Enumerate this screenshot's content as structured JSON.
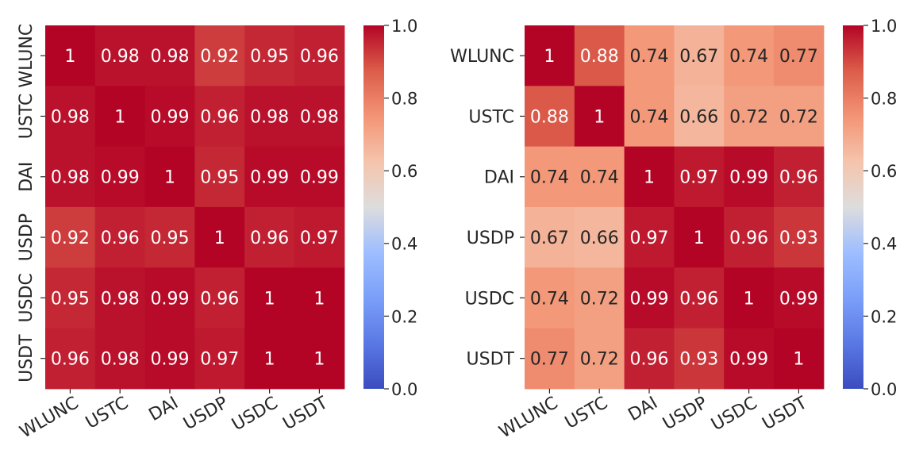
{
  "chart_data": [
    {
      "type": "heatmap",
      "title": "",
      "xlabel": "",
      "ylabel": "",
      "categories": [
        "WLUNC",
        "USTC",
        "DAI",
        "USDP",
        "USDC",
        "USDT"
      ],
      "y_labels_rotated": true,
      "values": [
        [
          1,
          0.98,
          0.98,
          0.92,
          0.95,
          0.96
        ],
        [
          0.98,
          1,
          0.99,
          0.96,
          0.98,
          0.98
        ],
        [
          0.98,
          0.99,
          1,
          0.95,
          0.99,
          0.99
        ],
        [
          0.92,
          0.96,
          0.95,
          1,
          0.96,
          0.97
        ],
        [
          0.95,
          0.98,
          0.99,
          0.96,
          1,
          1
        ],
        [
          0.96,
          0.98,
          0.99,
          0.97,
          1,
          1
        ]
      ],
      "cell_labels": [
        [
          "1",
          "0.98",
          "0.98",
          "0.92",
          "0.95",
          "0.96"
        ],
        [
          "0.98",
          "1",
          "0.99",
          "0.96",
          "0.98",
          "0.98"
        ],
        [
          "0.98",
          "0.99",
          "1",
          "0.95",
          "0.99",
          "0.99"
        ],
        [
          "0.92",
          "0.96",
          "0.95",
          "1",
          "0.96",
          "0.97"
        ],
        [
          "0.95",
          "0.98",
          "0.99",
          "0.96",
          "1",
          "1"
        ],
        [
          "0.96",
          "0.98",
          "0.99",
          "0.97",
          "1",
          "1"
        ]
      ],
      "colorbar": {
        "range": [
          0.0,
          1.0
        ],
        "ticks": [
          0.0,
          0.2,
          0.4,
          0.6,
          0.8,
          1.0
        ],
        "tick_labels": [
          "0.0",
          "0.2",
          "0.4",
          "0.6",
          "0.8",
          "1.0"
        ],
        "colormap": "coolwarm"
      }
    },
    {
      "type": "heatmap",
      "title": "",
      "xlabel": "",
      "ylabel": "",
      "categories": [
        "WLUNC",
        "USTC",
        "DAI",
        "USDP",
        "USDC",
        "USDT"
      ],
      "y_labels_rotated": false,
      "values": [
        [
          1,
          0.88,
          0.74,
          0.67,
          0.74,
          0.77
        ],
        [
          0.88,
          1,
          0.74,
          0.66,
          0.72,
          0.72
        ],
        [
          0.74,
          0.74,
          1,
          0.97,
          0.99,
          0.96
        ],
        [
          0.67,
          0.66,
          0.97,
          1,
          0.96,
          0.93
        ],
        [
          0.74,
          0.72,
          0.99,
          0.96,
          1,
          0.99
        ],
        [
          0.77,
          0.72,
          0.96,
          0.93,
          0.99,
          1
        ]
      ],
      "cell_labels": [
        [
          "1",
          "0.88",
          "0.74",
          "0.67",
          "0.74",
          "0.77"
        ],
        [
          "0.88",
          "1",
          "0.74",
          "0.66",
          "0.72",
          "0.72"
        ],
        [
          "0.74",
          "0.74",
          "1",
          "0.97",
          "0.99",
          "0.96"
        ],
        [
          "0.67",
          "0.66",
          "0.97",
          "1",
          "0.96",
          "0.93"
        ],
        [
          "0.74",
          "0.72",
          "0.99",
          "0.96",
          "1",
          "0.99"
        ],
        [
          "0.77",
          "0.72",
          "0.96",
          "0.93",
          "0.99",
          "1"
        ]
      ],
      "colorbar": {
        "range": [
          0.0,
          1.0
        ],
        "ticks": [
          0.0,
          0.2,
          0.4,
          0.6,
          0.8,
          1.0
        ],
        "tick_labels": [
          "0.0",
          "0.2",
          "0.4",
          "0.6",
          "0.8",
          "1.0"
        ],
        "colormap": "coolwarm"
      }
    }
  ]
}
